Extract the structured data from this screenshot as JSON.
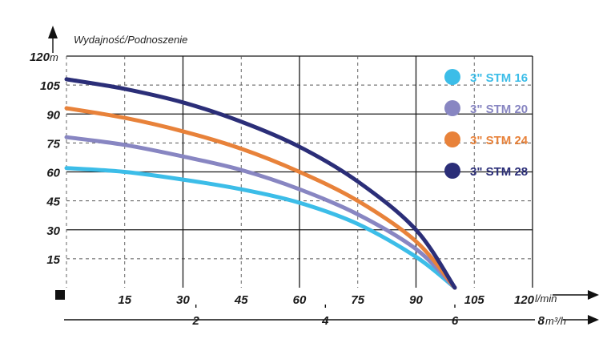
{
  "chart_data": {
    "type": "line",
    "title": "",
    "ylabel": "Wydajność/Podnoszenie",
    "xlabel": "",
    "y_unit": "m",
    "x_unit": "l/min",
    "secondary_x_unit": "m³/h",
    "xlim": [
      0,
      120
    ],
    "ylim": [
      0,
      120
    ],
    "y_ticks": [
      "15",
      "30",
      "45",
      "60",
      "75",
      "90",
      "105",
      "120"
    ],
    "x_ticks": [
      "15",
      "30",
      "45",
      "60",
      "75",
      "90",
      "105",
      "120"
    ],
    "secondary_x_ticks": [
      "2",
      "4",
      "6",
      "8"
    ],
    "grid": true,
    "legend_position": "right",
    "series": [
      {
        "name": "3\" STM 16",
        "color": "#3cbde8",
        "x": [
          0,
          15,
          30,
          45,
          60,
          75,
          90,
          100
        ],
        "y": [
          62,
          60,
          56,
          51,
          44,
          33,
          16,
          0
        ]
      },
      {
        "name": "3\" STM 20",
        "color": "#8886c2",
        "x": [
          0,
          15,
          30,
          45,
          60,
          75,
          90,
          100
        ],
        "y": [
          78,
          74,
          68,
          61,
          51,
          38,
          20,
          0
        ]
      },
      {
        "name": "3\" STM 24",
        "color": "#e8823a",
        "x": [
          0,
          15,
          30,
          45,
          60,
          75,
          90,
          100
        ],
        "y": [
          93,
          88,
          81,
          72,
          60,
          45,
          24,
          0
        ]
      },
      {
        "name": "3\" STM 28",
        "color": "#2b2e78",
        "x": [
          0,
          15,
          30,
          45,
          60,
          75,
          90,
          100
        ],
        "y": [
          108,
          103,
          96,
          86,
          73,
          55,
          30,
          0
        ]
      }
    ]
  }
}
